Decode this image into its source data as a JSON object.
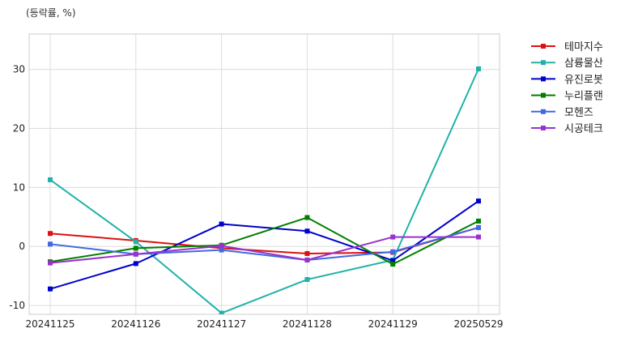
{
  "chart_data": {
    "type": "line",
    "unit_label": "(등락률, %)",
    "x": [
      "20241125",
      "20241126",
      "20241127",
      "20241128",
      "20241129",
      "20250529"
    ],
    "y_ticks": [
      30,
      20,
      10,
      0,
      -10
    ],
    "ylim": [
      -11.5,
      36
    ],
    "grid": true,
    "legend_position": "right",
    "series": [
      {
        "name": "테마지수",
        "color": "#dd1111",
        "values": [
          2.2,
          1.0,
          -0.3,
          -1.2,
          -1.0,
          3.2
        ]
      },
      {
        "name": "삼륭물산",
        "color": "#20b2aa",
        "values": [
          11.3,
          0.8,
          -11.3,
          -5.6,
          -2.3,
          30.1
        ]
      },
      {
        "name": "유진로봇",
        "color": "#0000cc",
        "values": [
          -7.2,
          -2.9,
          3.8,
          2.6,
          -2.4,
          7.7
        ]
      },
      {
        "name": "누리플랜",
        "color": "#007f00",
        "values": [
          -2.6,
          -0.3,
          0.2,
          4.9,
          -3.0,
          4.3
        ]
      },
      {
        "name": "모헨즈",
        "color": "#4169e1",
        "values": [
          0.4,
          -1.3,
          -0.6,
          -2.3,
          -0.9,
          3.2
        ]
      },
      {
        "name": "시공테크",
        "color": "#9932cc",
        "values": [
          -2.8,
          -1.3,
          0.1,
          -2.3,
          1.6,
          1.6
        ]
      }
    ]
  }
}
